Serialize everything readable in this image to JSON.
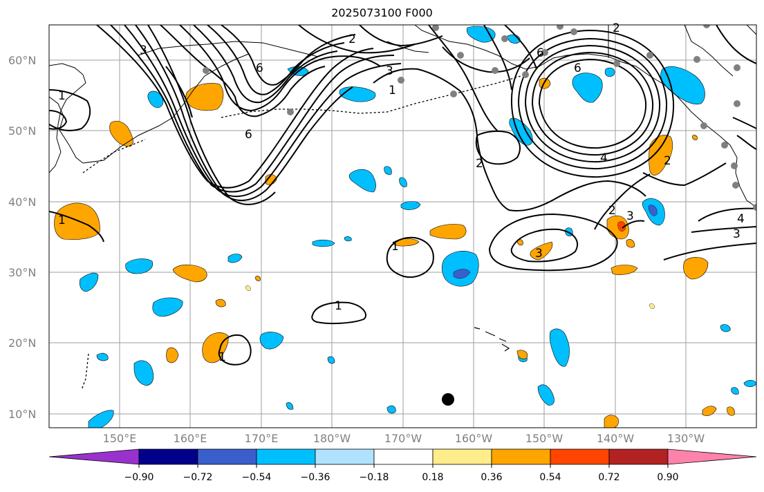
{
  "title": "2025073100 F000",
  "lat_labels": [
    "60°N",
    "50°N",
    "40°N",
    "30°N",
    "20°N",
    "10°N"
  ],
  "lon_labels": [
    "150°E",
    "160°E",
    "170°E",
    "180°W",
    "170°W",
    "160°W",
    "150°W",
    "140°W",
    "130°W"
  ],
  "colorbar": {
    "tick_labels": [
      "−0.90",
      "−0.72",
      "−0.54",
      "−0.36",
      "−0.18",
      "0.18",
      "0.36",
      "0.54",
      "0.72",
      "0.90"
    ],
    "colors": [
      "#9932cc",
      "#00008b",
      "#3a5fcd",
      "#00bfff",
      "#b0e2ff",
      "#ffffff",
      "#ffec8b",
      "#ffa500",
      "#ff4500",
      "#b22222",
      "#ff82ab"
    ]
  },
  "contour_labels": [
    "1",
    "1",
    "1",
    "1",
    "1",
    "1",
    "2",
    "2",
    "2",
    "2",
    "2",
    "3",
    "3",
    "3",
    "3",
    "3",
    "4",
    "4",
    "6",
    "6",
    "6",
    "6"
  ],
  "colors": {
    "positive_fill": "#ffa500",
    "negative_fill": "#00bfff",
    "strong_negative_fill": "#3a5fcd",
    "strong_positive_fill": "#ff4500",
    "station_dot": "#808080",
    "marker": "#000000"
  }
}
